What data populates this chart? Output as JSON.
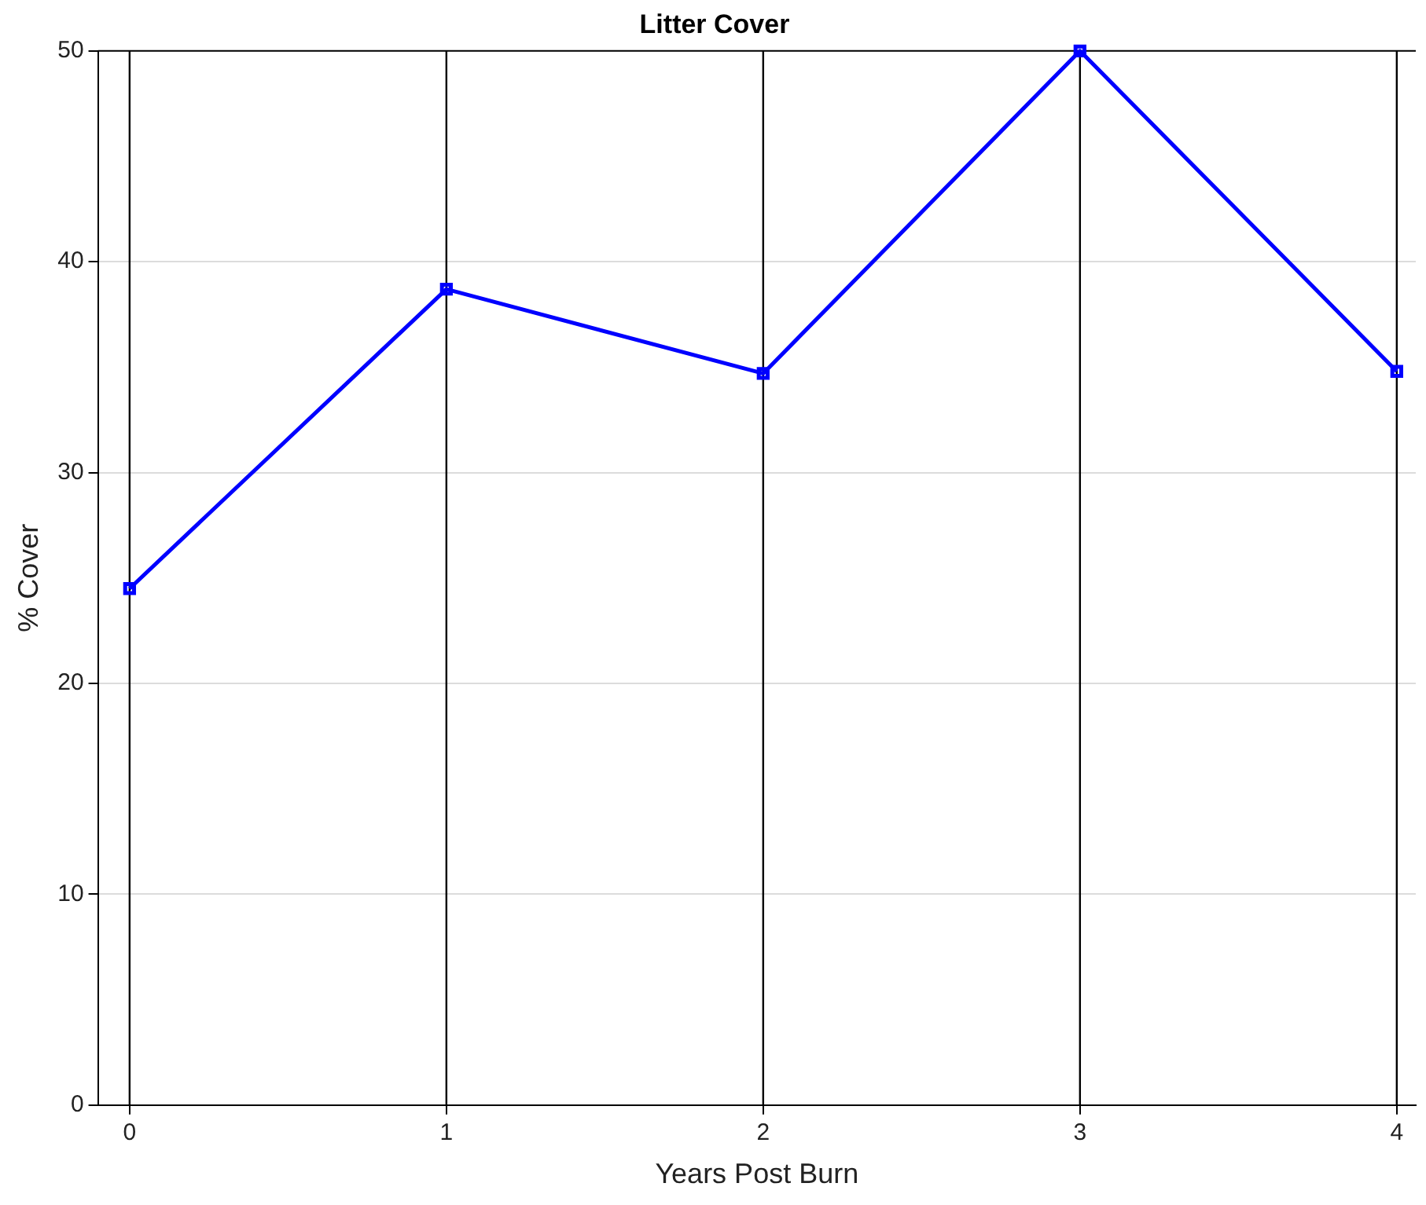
{
  "chart_data": {
    "type": "line",
    "title": "Litter Cover",
    "xlabel": "Years Post Burn",
    "ylabel": "% Cover",
    "x": [
      0,
      1,
      2,
      3,
      4
    ],
    "series": [
      {
        "color": "#0000ff",
        "values": [
          24.5,
          38.7,
          34.7,
          50,
          34.8
        ]
      }
    ],
    "xlim": [
      -0.1,
      4.06
    ],
    "xticks": [
      0,
      1,
      2,
      3,
      4
    ],
    "ylim": [
      0,
      50
    ],
    "yticks": [
      0,
      10,
      20,
      30,
      40,
      50
    ],
    "grid": "y",
    "legend": false,
    "marker": "square",
    "line_style": "solid",
    "ref_lines": [
      {
        "axis": "x",
        "value": 0,
        "color": "#000000"
      },
      {
        "axis": "x",
        "value": 1,
        "color": "#000000"
      },
      {
        "axis": "x",
        "value": 2,
        "color": "#000000"
      },
      {
        "axis": "x",
        "value": 3,
        "color": "#000000"
      },
      {
        "axis": "x",
        "value": 4,
        "color": "#000000"
      }
    ]
  }
}
